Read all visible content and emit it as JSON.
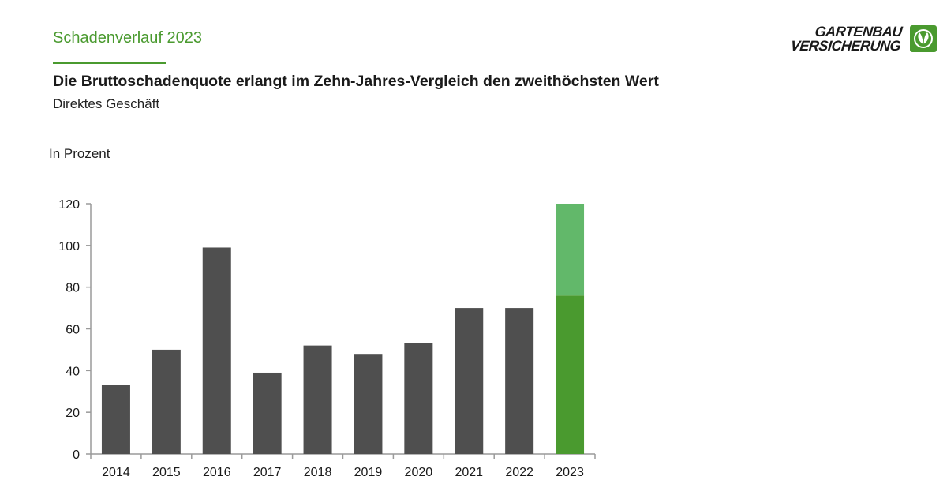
{
  "header": {
    "kicker": "Schadenverlauf 2023",
    "title": "Die Bruttoschadenquote erlangt im Zehn-Jahres-Vergleich den zweithöchsten Wert",
    "subtitle": "Direktes Geschäft"
  },
  "brand": {
    "line1": "GARTENBAU",
    "line2": "VERSICHERUNG",
    "logo_icon": "leaf-flower-icon",
    "accent_color": "#4a9a2f"
  },
  "chart_data": {
    "type": "bar",
    "title": "",
    "ylabel": "In Prozent",
    "xlabel": "",
    "ylim": [
      0,
      120
    ],
    "yticks": [
      0,
      20,
      40,
      60,
      80,
      100,
      120
    ],
    "categories": [
      "2014",
      "2015",
      "2016",
      "2017",
      "2018",
      "2019",
      "2020",
      "2021",
      "2022",
      "2023"
    ],
    "values": [
      33,
      50,
      99,
      39,
      52,
      48,
      53,
      70,
      70,
      120
    ],
    "stacked_highlight": {
      "category": "2023",
      "base_value": 76,
      "total_value": 120
    },
    "colors": {
      "bar": "#4f4f4f",
      "highlight_base": "#4a9a2f",
      "highlight_top": "#62b86a",
      "axis": "#9a9a9a"
    },
    "grid": false,
    "legend": "none"
  }
}
